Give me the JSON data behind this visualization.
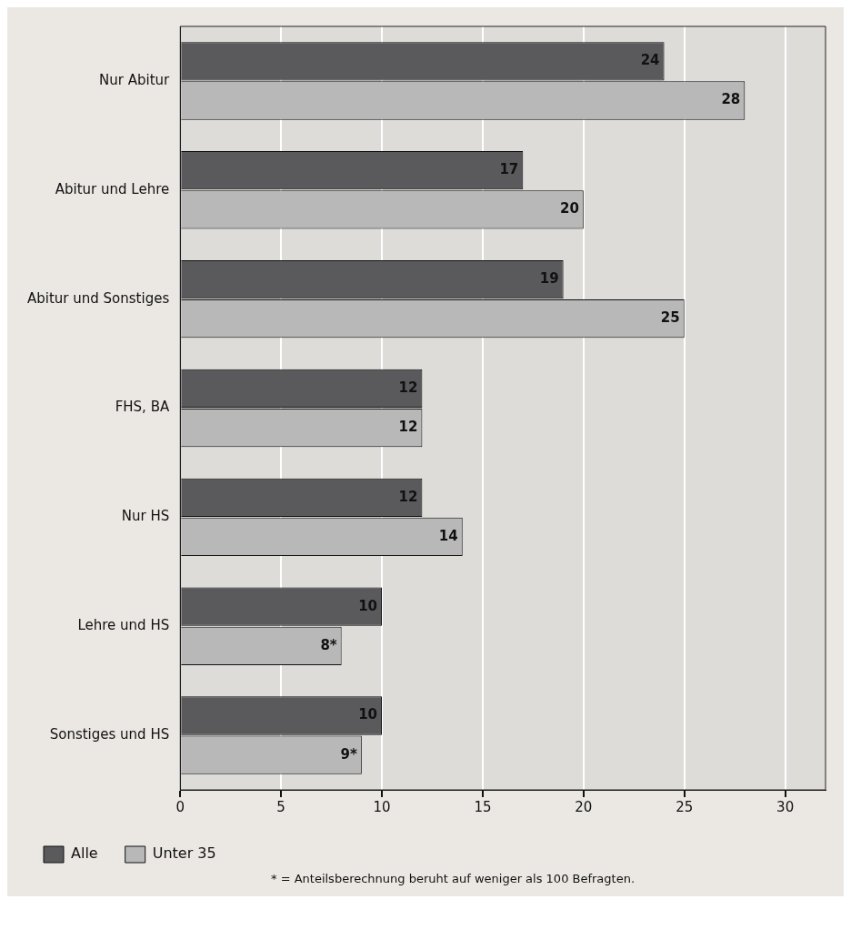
{
  "chart_data": {
    "type": "bar",
    "orientation": "horizontal",
    "categories": [
      "Nur Abitur",
      "Abitur und Lehre",
      "Abitur und Sonstiges",
      "FHS, BA",
      "Nur HS",
      "Lehre und HS",
      "Sonstiges und HS"
    ],
    "series": [
      {
        "name": "Alle",
        "color": "#5a5a5c",
        "values": [
          24,
          17,
          19,
          12,
          12,
          10,
          10
        ],
        "value_labels": [
          "24",
          "17",
          "19",
          "12",
          "12",
          "10",
          "10"
        ]
      },
      {
        "name": "Unter 35",
        "color": "#b8b8b8",
        "values": [
          28,
          20,
          25,
          12,
          14,
          8,
          9
        ],
        "value_labels": [
          "28",
          "20",
          "25",
          "12",
          "14",
          "8*",
          "9*"
        ]
      }
    ],
    "xlim": [
      0,
      32
    ],
    "xticks": [
      0,
      5,
      10,
      15,
      20,
      25,
      30
    ],
    "grid": "x",
    "legend": "bottom left",
    "annotations": [
      "* = Anteilsberechnung beruht auf weniger als 100 Befragten."
    ]
  }
}
